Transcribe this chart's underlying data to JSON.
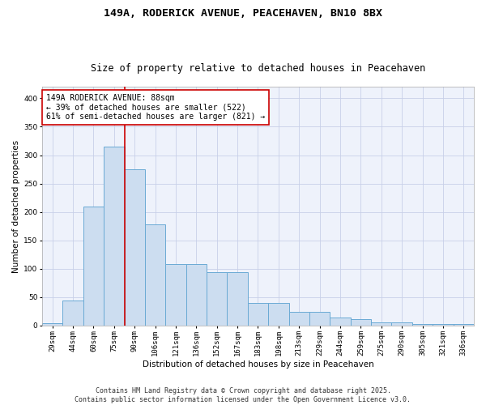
{
  "title_line1": "149A, RODERICK AVENUE, PEACEHAVEN, BN10 8BX",
  "title_line2": "Size of property relative to detached houses in Peacehaven",
  "xlabel": "Distribution of detached houses by size in Peacehaven",
  "ylabel": "Number of detached properties",
  "categories": [
    "29sqm",
    "44sqm",
    "60sqm",
    "75sqm",
    "90sqm",
    "106sqm",
    "121sqm",
    "136sqm",
    "152sqm",
    "167sqm",
    "183sqm",
    "198sqm",
    "213sqm",
    "229sqm",
    "244sqm",
    "259sqm",
    "275sqm",
    "290sqm",
    "305sqm",
    "321sqm",
    "336sqm"
  ],
  "values": [
    4,
    44,
    210,
    315,
    275,
    178,
    108,
    108,
    93,
    93,
    40,
    40,
    24,
    24,
    14,
    11,
    5,
    5,
    3,
    3,
    3
  ],
  "bar_color": "#ccddf0",
  "bar_edge_color": "#6aaad4",
  "vline_color": "#cc0000",
  "vline_index": 3.5,
  "annotation_text": "149A RODERICK AVENUE: 88sqm\n← 39% of detached houses are smaller (522)\n61% of semi-detached houses are larger (821) →",
  "annotation_box_facecolor": "white",
  "annotation_box_edgecolor": "#cc0000",
  "ylim": [
    0,
    420
  ],
  "yticks": [
    0,
    50,
    100,
    150,
    200,
    250,
    300,
    350,
    400
  ],
  "footer_line1": "Contains HM Land Registry data © Crown copyright and database right 2025.",
  "footer_line2": "Contains public sector information licensed under the Open Government Licence v3.0.",
  "bg_color": "#eef2fb",
  "grid_color": "#c8d0e8",
  "title_fontsize": 9.5,
  "subtitle_fontsize": 8.5,
  "axis_label_fontsize": 7.5,
  "tick_fontsize": 6.5,
  "annotation_fontsize": 7,
  "footer_fontsize": 6
}
